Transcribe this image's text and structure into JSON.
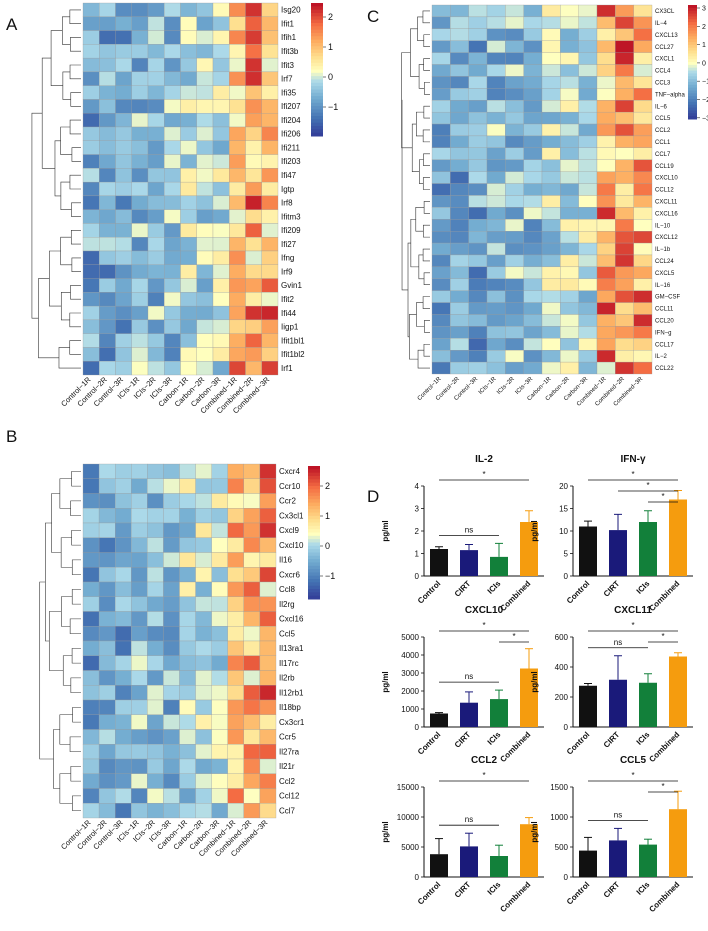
{
  "panels": {
    "A": {
      "letter": "A",
      "rows": [
        "Isg20",
        "Ifit1",
        "Ifih1",
        "Ifit3b",
        "Ifit3",
        "Irf7",
        "Ifi35",
        "Ifi207",
        "Ifi204",
        "Ifi206",
        "Ifi211",
        "Ifi203",
        "Ifi47",
        "Igtp",
        "Irf8",
        "Ifitm3",
        "Ifi209",
        "Ifi27",
        "Ifng",
        "Irf9",
        "Gvin1",
        "Ifit2",
        "Ifi44",
        "Iigp1",
        "Ifit1bl1",
        "Ifit1bl2",
        "Irf1"
      ],
      "cols": [
        "Control−1R",
        "Control−2R",
        "Control−3R",
        "ICIs−1R",
        "ICIs−2R",
        "ICIs−3R",
        "Carbon−1R",
        "Carbon−2R",
        "Carbon−3R",
        "Combined−1R",
        "Combined−2R",
        "Combined−3R"
      ],
      "legend_ticks": [
        "2",
        "1",
        "0",
        "−1"
      ]
    },
    "B": {
      "letter": "B",
      "rows": [
        "Cxcr4",
        "Ccr10",
        "Ccr2",
        "Cx3cl1",
        "Cxcl9",
        "Cxcl10",
        "Il16",
        "Cxcr6",
        "Ccl8",
        "Il2rg",
        "Cxcl16",
        "Ccl5",
        "Il13ra1",
        "Il17rc",
        "Il2rb",
        "Il12rb1",
        "Il18bp",
        "Cx3cr1",
        "Ccr5",
        "Il27ra",
        "Il21r",
        "Ccl2",
        "Ccl12",
        "Ccl7"
      ],
      "cols": [
        "Control−1R",
        "Control−2R",
        "Control−3R",
        "ICIs−1R",
        "ICIs−2R",
        "ICIs−3R",
        "Carbon−1R",
        "Carbon−2R",
        "Carbon−3R",
        "Combined−1R",
        "Combined−2R",
        "Combined−3R"
      ],
      "legend_ticks": [
        "2",
        "1",
        "0",
        "−1"
      ]
    },
    "C": {
      "letter": "C",
      "rows": [
        "CX3CL",
        "IL−4",
        "CXCL13",
        "CCL27",
        "CXCL1",
        "CCL4",
        "CCL3",
        "TNF−alpha",
        "IL−6",
        "CCL5",
        "CCL2",
        "CCL1",
        "CCL7",
        "CCL19",
        "CXCL10",
        "CCL12",
        "CXCL11",
        "CXCL16",
        "IL−10",
        "CXCL12",
        "IL−1b",
        "CCL24",
        "CXCL5",
        "IL−16",
        "GM−CSF",
        "CCL11",
        "CCL20",
        "IFN−g",
        "CCL17",
        "IL−2",
        "CCL22"
      ],
      "cols": [
        "Control−1R",
        "Control−2R",
        "Control−3R",
        "ICIs−1R",
        "ICIs−2R",
        "ICIs−3R",
        "Carbon−1R",
        "Carbon−2R",
        "Carbon−3R",
        "Combined−1R",
        "Combined−2R",
        "Combined−3R"
      ],
      "legend_ticks": [
        "3",
        "2",
        "1",
        "0",
        "−1",
        "−2",
        "−3"
      ]
    },
    "D": {
      "letter": "D"
    }
  },
  "chart_data": [
    {
      "type": "bar",
      "title": "IL-2",
      "ylabel": "pg/ml",
      "categories": [
        "Control",
        "CIRT",
        "ICIs",
        "Combined"
      ],
      "values": [
        1.2,
        1.15,
        0.85,
        2.4
      ],
      "errors": [
        0.1,
        0.25,
        0.6,
        0.5
      ],
      "ylim": [
        0,
        4
      ],
      "yticks": [
        "0",
        "1",
        "2",
        "3",
        "4"
      ],
      "colors": [
        "#111111",
        "#1a1a7a",
        "#12803a",
        "#f59c0e"
      ],
      "annotations": [
        {
          "label": "*",
          "from": 0,
          "to": 3
        },
        {
          "label": "ns",
          "from": 0,
          "to": 2
        }
      ]
    },
    {
      "type": "bar",
      "title": "IFN-γ",
      "ylabel": "pg/ml",
      "categories": [
        "Control",
        "CIRT",
        "ICIs",
        "Combined"
      ],
      "values": [
        11,
        10.2,
        12,
        17
      ],
      "errors": [
        1.2,
        3.5,
        2.5,
        2
      ],
      "ylim": [
        0,
        20
      ],
      "yticks": [
        "0",
        "5",
        "10",
        "15",
        "20"
      ],
      "colors": [
        "#111111",
        "#1a1a7a",
        "#12803a",
        "#f59c0e"
      ],
      "annotations": [
        {
          "label": "*",
          "from": 0,
          "to": 3
        },
        {
          "label": "*",
          "from": 1,
          "to": 3
        },
        {
          "label": "*",
          "from": 2,
          "to": 3
        }
      ]
    },
    {
      "type": "bar",
      "title": "CXCL10",
      "ylabel": "pg/ml",
      "categories": [
        "Control",
        "CIRT",
        "ICIs",
        "Combined"
      ],
      "values": [
        750,
        1350,
        1550,
        3250
      ],
      "errors": [
        50,
        600,
        500,
        1100
      ],
      "ylim": [
        0,
        5000
      ],
      "yticks": [
        "0",
        "1000",
        "2000",
        "3000",
        "4000",
        "5000"
      ],
      "colors": [
        "#111111",
        "#1a1a7a",
        "#12803a",
        "#f59c0e"
      ],
      "annotations": [
        {
          "label": "*",
          "from": 0,
          "to": 3
        },
        {
          "label": "*",
          "from": 2,
          "to": 3
        },
        {
          "label": "ns",
          "from": 0,
          "to": 2
        }
      ]
    },
    {
      "type": "bar",
      "title": "CXCL11",
      "ylabel": "pg/ml",
      "categories": [
        "Control",
        "CIRT",
        "ICIs",
        "Combined"
      ],
      "values": [
        275,
        315,
        295,
        470
      ],
      "errors": [
        15,
        160,
        60,
        25
      ],
      "ylim": [
        0,
        600
      ],
      "yticks": [
        "0",
        "200",
        "400",
        "600"
      ],
      "colors": [
        "#111111",
        "#1a1a7a",
        "#12803a",
        "#f59c0e"
      ],
      "annotations": [
        {
          "label": "*",
          "from": 0,
          "to": 3
        },
        {
          "label": "*",
          "from": 2,
          "to": 3
        },
        {
          "label": "ns",
          "from": 0,
          "to": 2
        }
      ]
    },
    {
      "type": "bar",
      "title": "CCL2",
      "ylabel": "pg/ml",
      "categories": [
        "Control",
        "CIRT",
        "ICIs",
        "Combined"
      ],
      "values": [
        3800,
        5100,
        3500,
        8800
      ],
      "errors": [
        2600,
        2200,
        1800,
        1100
      ],
      "ylim": [
        0,
        15000
      ],
      "yticks": [
        "0",
        "5000",
        "10000",
        "15000"
      ],
      "colors": [
        "#111111",
        "#1a1a7a",
        "#12803a",
        "#f59c0e"
      ],
      "annotations": [
        {
          "label": "*",
          "from": 0,
          "to": 3
        },
        {
          "label": "ns",
          "from": 0,
          "to": 2
        }
      ]
    },
    {
      "type": "bar",
      "title": "CCL5",
      "ylabel": "pg/ml",
      "categories": [
        "Control",
        "CIRT",
        "ICIs",
        "Combined"
      ],
      "values": [
        440,
        610,
        540,
        1130
      ],
      "errors": [
        220,
        200,
        90,
        300
      ],
      "ylim": [
        0,
        1500
      ],
      "yticks": [
        "0",
        "500",
        "1000",
        "1500"
      ],
      "colors": [
        "#111111",
        "#1a1a7a",
        "#12803a",
        "#f59c0e"
      ],
      "annotations": [
        {
          "label": "*",
          "from": 0,
          "to": 3
        },
        {
          "label": "*",
          "from": 2,
          "to": 3
        },
        {
          "label": "ns",
          "from": 0,
          "to": 2
        }
      ]
    }
  ]
}
